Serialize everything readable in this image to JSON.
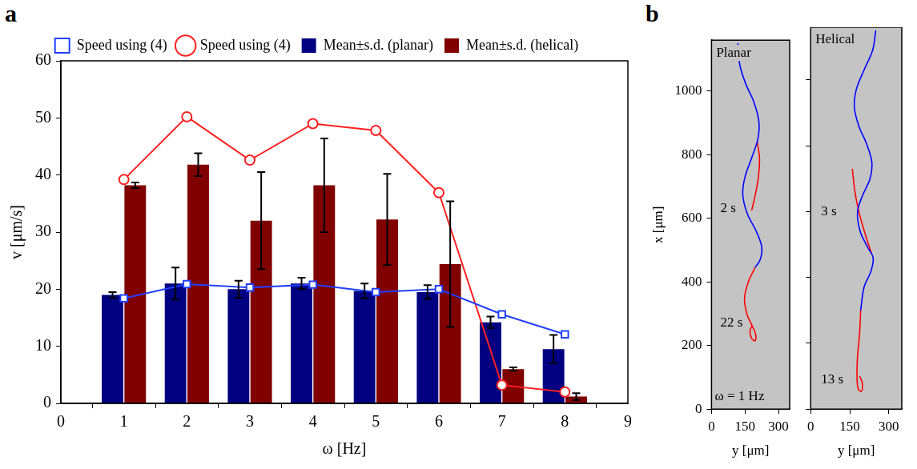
{
  "chart_data": [
    {
      "type": "bar",
      "panel_label": "a",
      "x_label": "ω [Hz]",
      "y_label": "v [μm/s]",
      "x": [
        1,
        2,
        3,
        4,
        5,
        6,
        7,
        8
      ],
      "xlim": [
        0,
        9
      ],
      "xticks": [
        0,
        1,
        2,
        3,
        4,
        5,
        6,
        7,
        8,
        9
      ],
      "ylim": [
        0,
        60
      ],
      "yticks": [
        0,
        10,
        20,
        30,
        40,
        50,
        60
      ],
      "grid": false,
      "legend": "top",
      "series": [
        {
          "name": "Speed using (4)",
          "type": "line",
          "color": "#2040ff",
          "marker": "square",
          "values": [
            18.4,
            20.9,
            20.3,
            20.8,
            19.5,
            20.0,
            15.6,
            12.1
          ]
        },
        {
          "name": "Mean±s.d. (planar)",
          "type": "bar",
          "color": "#000080",
          "values": [
            19.0,
            21.0,
            20.0,
            21.0,
            19.7,
            19.5,
            14.2,
            9.5
          ],
          "error": [
            0.5,
            2.8,
            1.5,
            1.0,
            1.3,
            1.2,
            1.0,
            2.5
          ]
        },
        {
          "name": "Speed using (4)",
          "type": "line",
          "color": "#ff2020",
          "marker": "circle",
          "values": [
            39.2,
            50.2,
            42.6,
            49.0,
            47.8,
            36.9,
            3.2,
            2.0
          ]
        },
        {
          "name": "Mean±s.d. (helical)",
          "type": "bar",
          "color": "#800000",
          "values": [
            38.2,
            41.8,
            32.0,
            38.2,
            32.2,
            24.4,
            6.0,
            1.2
          ],
          "error": [
            0.5,
            2.0,
            8.5,
            8.2,
            8.0,
            11.0,
            0.3,
            0.6
          ]
        }
      ]
    },
    {
      "type": "line",
      "panel_label": "b",
      "title": "Planar",
      "x_label": "y [μm]",
      "y_label": "x [μm]",
      "xlim": [
        0,
        350
      ],
      "xticks": [
        0,
        150,
        300
      ],
      "ylim": [
        0,
        1160
      ],
      "yticks": [
        0,
        200,
        400,
        600,
        800,
        1000
      ],
      "grid": false,
      "series": [
        {
          "color": "#0000ff",
          "x": [
            118,
            126,
            152,
            190,
            212,
            208,
            180,
            150,
            140,
            160,
            200,
            225,
            218,
            195
          ],
          "values": [
            1150,
            1085,
            1025,
            965,
            905,
            850,
            790,
            730,
            675,
            615,
            560,
            510,
            470,
            445
          ]
        },
        {
          "color": "#ff0000",
          "x": [
            195,
            165,
            148,
            158,
            180,
            198,
            195,
            180,
            172,
            182
          ],
          "values": [
            445,
            400,
            350,
            300,
            265,
            235,
            215,
            222,
            245,
            262
          ]
        },
        {
          "color": "#ff0000",
          "x": [
            205,
            215,
            210,
            195,
            180
          ],
          "values": [
            840,
            790,
            730,
            670,
            625
          ]
        }
      ],
      "annotations": [
        {
          "text": "2 s",
          "x": 40,
          "y": 630
        },
        {
          "text": "22 s",
          "x": 40,
          "y": 270
        },
        {
          "text": "ω = 1 Hz",
          "x": 15,
          "y": 40
        }
      ]
    },
    {
      "type": "line",
      "title": "Helical",
      "x_label": "y [μm]",
      "xlim": [
        0,
        350
      ],
      "xticks": [
        0,
        150,
        300
      ],
      "ylim": [
        0,
        1160
      ],
      "yticks": [
        0,
        200,
        400,
        600,
        800,
        1000
      ],
      "grid": false,
      "tick_labels": "x",
      "series": [
        {
          "color": "#0000ff",
          "x": [
            250,
            238,
            205,
            175,
            168,
            185,
            215,
            235,
            228,
            200,
            180,
            190,
            220,
            240,
            232,
            205,
            192
          ],
          "values": [
            1150,
            1090,
            1030,
            970,
            915,
            860,
            805,
            750,
            700,
            650,
            600,
            540,
            490,
            460,
            420,
            370,
            300
          ]
        },
        {
          "color": "#ff0000",
          "x": [
            192,
            188,
            180,
            178,
            183,
            196,
            198,
            188
          ],
          "values": [
            300,
            230,
            160,
            100,
            60,
            55,
            80,
            100
          ]
        },
        {
          "color": "#ff0000",
          "x": [
            160,
            170,
            185,
            210,
            235
          ],
          "values": [
            730,
            660,
            600,
            530,
            470
          ]
        }
      ],
      "annotations": [
        {
          "text": "3 s",
          "x": 40,
          "y": 600
        },
        {
          "text": "13 s",
          "x": 40,
          "y": 90
        }
      ]
    }
  ]
}
